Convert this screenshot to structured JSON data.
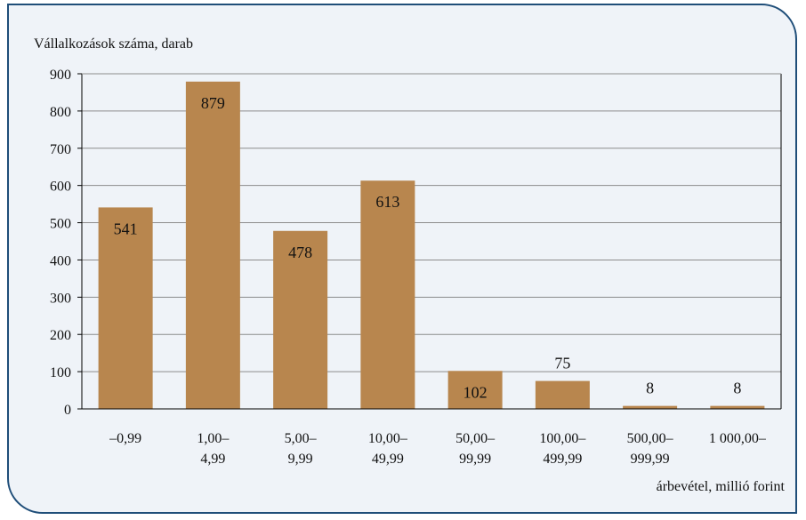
{
  "chart_data": {
    "type": "bar",
    "ylabel": "Vállalkozások száma, darab",
    "xlabel": "árbevétel, millió forint",
    "ylim": [
      0,
      900
    ],
    "yticks": [
      0,
      100,
      200,
      300,
      400,
      500,
      600,
      700,
      800,
      900
    ],
    "categories": [
      [
        "–0,99"
      ],
      [
        "1,00–",
        "4,99"
      ],
      [
        "5,00–",
        "9,99"
      ],
      [
        "10,00–",
        "49,99"
      ],
      [
        "50,00–",
        "99,99"
      ],
      [
        "100,00–",
        "499,99"
      ],
      [
        "500,00–",
        "999,99"
      ],
      [
        "1 000,00–"
      ]
    ],
    "values": [
      541,
      879,
      478,
      613,
      102,
      75,
      8,
      8
    ],
    "data_labels": [
      "541",
      "879",
      "478",
      "613",
      "102",
      "75",
      "8",
      "8"
    ],
    "grid": true,
    "colors": {
      "bar": "#b8864e",
      "frame": "#1f4e79",
      "background": "#eff3f8",
      "grid": "#8c8c8c",
      "axis": "#000000"
    }
  }
}
